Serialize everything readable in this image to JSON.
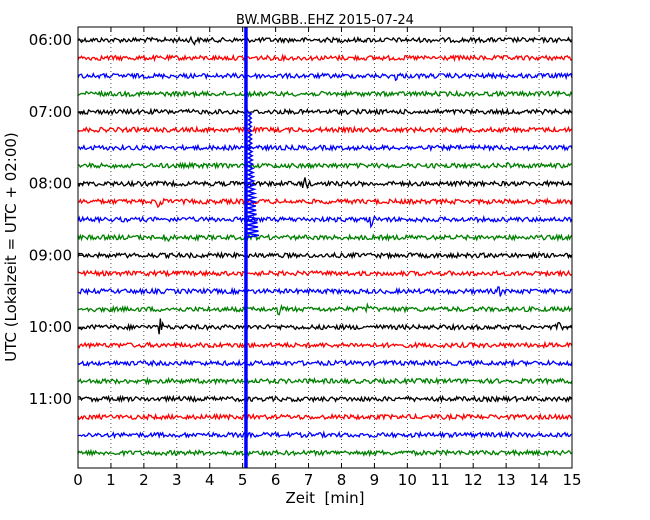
{
  "chart_data": {
    "type": "line",
    "title": "BW.MGBB..EHZ 2015-07-24",
    "xlabel": "Zeit  [min]",
    "ylabel": "UTC (Lokalzeit = UTC + 02:00)",
    "xlim": [
      0,
      15
    ],
    "x_ticks": [
      "0",
      "1",
      "2",
      "3",
      "4",
      "5",
      "6",
      "7",
      "8",
      "9",
      "10",
      "11",
      "12",
      "13",
      "14",
      "15"
    ],
    "y_tick_labels": [
      "06:00",
      "07:00",
      "08:00",
      "09:00",
      "10:00",
      "11:00"
    ],
    "trace_interval_min": 15,
    "trace_count": 24,
    "trace_colors": [
      "#000000",
      "#ff0000",
      "#0000ff",
      "#008000"
    ],
    "grid": "vertical dotted",
    "events": [
      {
        "time": "06:00",
        "minute": 3.5,
        "amp": 0.6
      },
      {
        "time": "06:30",
        "minute": 9.7,
        "amp": 0.5
      },
      {
        "time": "07:45",
        "minute": 13.0,
        "amp": 0.3
      },
      {
        "time": "08:00",
        "minute": 6.9,
        "amp": 1.0
      },
      {
        "time": "08:15",
        "minute": 2.5,
        "amp": 1.2
      },
      {
        "time": "08:30",
        "minute": 8.9,
        "amp": 0.9
      },
      {
        "time": "08:45",
        "minute": 2.7,
        "amp": 0.4
      },
      {
        "time": "09:30",
        "minute": 12.8,
        "amp": 0.5
      },
      {
        "time": "09:45",
        "minute": 8.8,
        "amp": 0.5
      },
      {
        "time": "09:45",
        "minute": 6.1,
        "amp": 0.4
      },
      {
        "time": "10:00",
        "minute": 2.5,
        "amp": 0.8
      },
      {
        "time": "10:00",
        "minute": 14.6,
        "amp": 0.3
      }
    ],
    "regional_event": {
      "start_time": "08:30",
      "minute": 5.2
    },
    "blue_vertical_line_minute": 5.1
  }
}
